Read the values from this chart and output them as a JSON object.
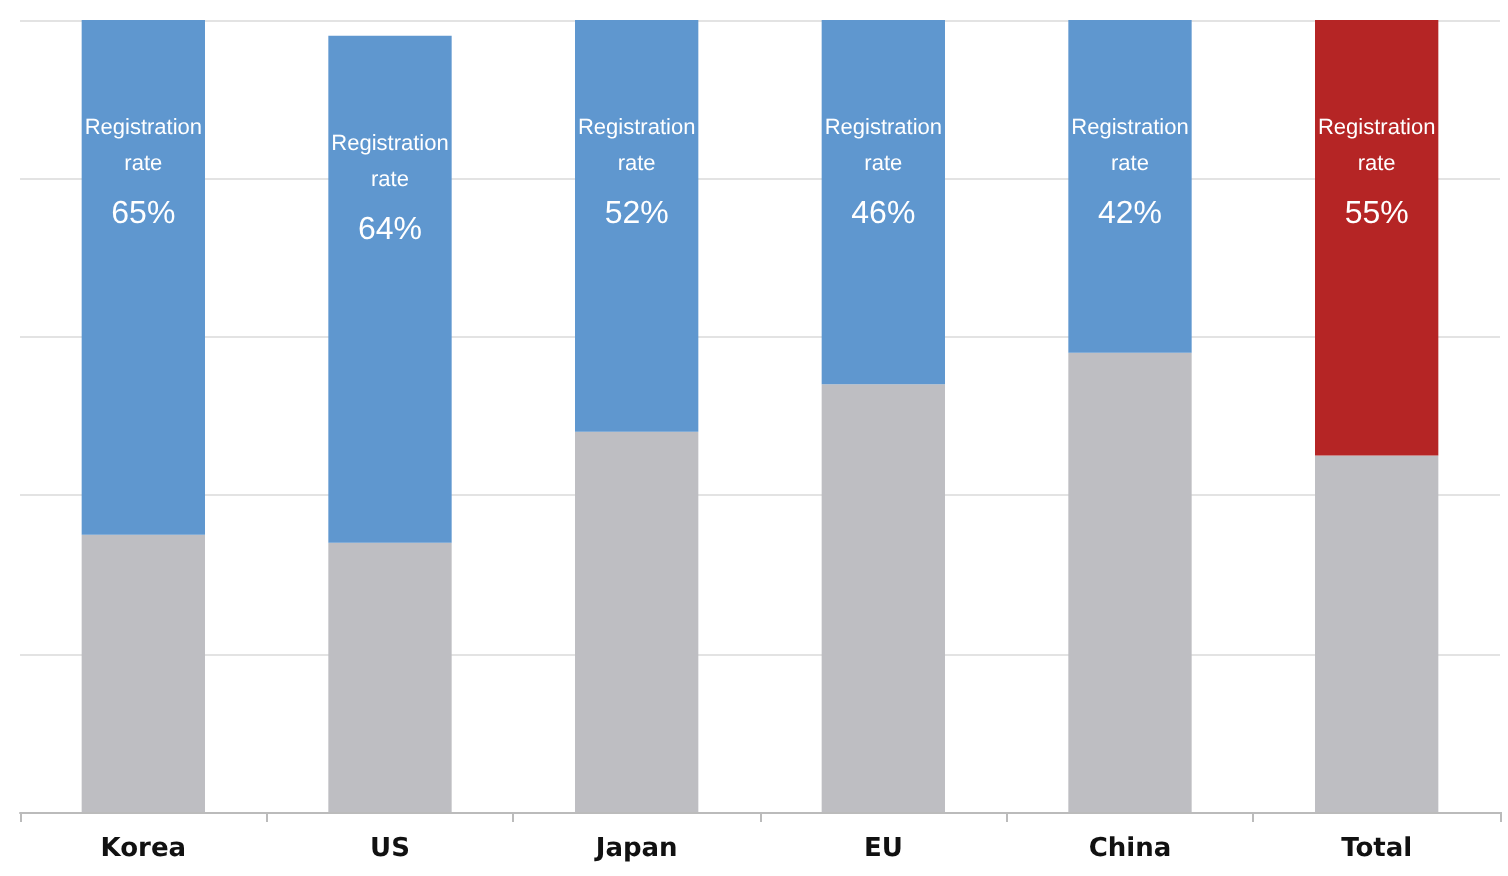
{
  "chart_data": {
    "type": "bar",
    "stacked": true,
    "grid": "y",
    "tick_labels": "x",
    "ylim": [
      0,
      100
    ],
    "yticks": [
      {
        "value": 0,
        "label": null
      },
      {
        "value": 20,
        "label": null
      },
      {
        "value": 40,
        "label": null
      },
      {
        "value": 60,
        "label": null
      },
      {
        "value": 80,
        "label": null
      },
      {
        "value": 100,
        "label": null
      }
    ],
    "categories": [
      "Korea",
      "US",
      "Japan",
      "EU",
      "China",
      "Total"
    ],
    "series": [
      {
        "color": "#bebec2",
        "values": [
          35,
          34,
          48,
          54,
          58,
          45
        ]
      },
      {
        "colors": [
          "#5f97cf",
          "#5f97cf",
          "#5f97cf",
          "#5f97cf",
          "#5f97cf",
          "#b52525"
        ],
        "values": [
          65,
          64,
          52,
          46,
          42,
          55
        ],
        "value_labels": [
          "Registration rate 65%",
          "Registration rate 64%",
          "Registration rate 52%",
          "Registration rate 46%",
          "Registration rate 42%",
          "Registration rate 55%"
        ]
      }
    ]
  }
}
